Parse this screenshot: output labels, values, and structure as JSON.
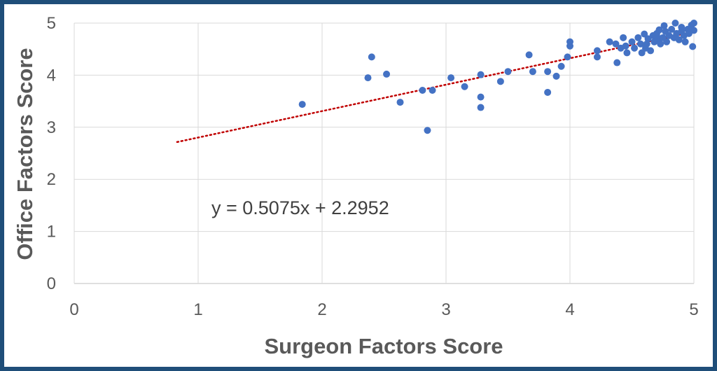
{
  "chart_data": {
    "type": "scatter",
    "xlabel": "Surgeon Factors Score",
    "ylabel": "Office Factors Score",
    "xlim": [
      0,
      5
    ],
    "ylim": [
      0,
      5
    ],
    "x_ticks": [
      "0",
      "1",
      "2",
      "3",
      "4",
      "5"
    ],
    "y_ticks": [
      "0",
      "1",
      "2",
      "3",
      "4",
      "5"
    ],
    "grid": true,
    "point_color": "#4472c4",
    "trendline": {
      "type": "linear",
      "slope": 0.5075,
      "intercept": 2.2952,
      "x_range": [
        0.83,
        5.0
      ],
      "style": "dotted",
      "color": "#c00000",
      "equation_label": "y = 0.5075x + 2.2952"
    },
    "points": [
      [
        1.84,
        3.44
      ],
      [
        2.37,
        3.95
      ],
      [
        2.4,
        4.35
      ],
      [
        2.52,
        4.02
      ],
      [
        2.63,
        3.48
      ],
      [
        2.81,
        3.71
      ],
      [
        2.85,
        2.94
      ],
      [
        2.89,
        3.71
      ],
      [
        3.04,
        3.95
      ],
      [
        3.15,
        3.78
      ],
      [
        3.28,
        4.01
      ],
      [
        3.28,
        3.58
      ],
      [
        3.28,
        3.38
      ],
      [
        3.44,
        3.88
      ],
      [
        3.5,
        4.07
      ],
      [
        3.67,
        4.39
      ],
      [
        3.7,
        4.07
      ],
      [
        3.82,
        4.07
      ],
      [
        3.82,
        3.67
      ],
      [
        3.89,
        3.98
      ],
      [
        3.93,
        4.17
      ],
      [
        3.98,
        4.35
      ],
      [
        4.0,
        4.56
      ],
      [
        4.0,
        4.64
      ],
      [
        4.22,
        4.47
      ],
      [
        4.22,
        4.35
      ],
      [
        4.32,
        4.64
      ],
      [
        4.37,
        4.6
      ],
      [
        4.38,
        4.24
      ],
      [
        4.41,
        4.52
      ],
      [
        4.43,
        4.72
      ],
      [
        4.45,
        4.56
      ],
      [
        4.46,
        4.43
      ],
      [
        4.5,
        4.64
      ],
      [
        4.52,
        4.52
      ],
      [
        4.55,
        4.72
      ],
      [
        4.57,
        4.6
      ],
      [
        4.58,
        4.43
      ],
      [
        4.6,
        4.79
      ],
      [
        4.61,
        4.52
      ],
      [
        4.63,
        4.7
      ],
      [
        4.65,
        4.47
      ],
      [
        4.67,
        4.76
      ],
      [
        4.68,
        4.64
      ],
      [
        4.7,
        4.8
      ],
      [
        4.71,
        4.68
      ],
      [
        4.72,
        4.87
      ],
      [
        4.73,
        4.6
      ],
      [
        4.75,
        4.72
      ],
      [
        4.76,
        4.95
      ],
      [
        4.77,
        4.84
      ],
      [
        4.78,
        4.64
      ],
      [
        4.8,
        4.76
      ],
      [
        4.82,
        4.88
      ],
      [
        4.84,
        4.72
      ],
      [
        4.85,
        5.0
      ],
      [
        4.86,
        4.8
      ],
      [
        4.88,
        4.68
      ],
      [
        4.9,
        4.92
      ],
      [
        4.92,
        4.76
      ],
      [
        4.93,
        4.64
      ],
      [
        4.95,
        4.88
      ],
      [
        4.96,
        4.8
      ],
      [
        4.98,
        4.96
      ],
      [
        4.99,
        4.55
      ],
      [
        5.0,
        4.86
      ],
      [
        5.0,
        5.0
      ],
      [
        4.9,
        4.84
      ],
      [
        4.7,
        4.76
      ],
      [
        4.62,
        4.6
      ]
    ]
  }
}
